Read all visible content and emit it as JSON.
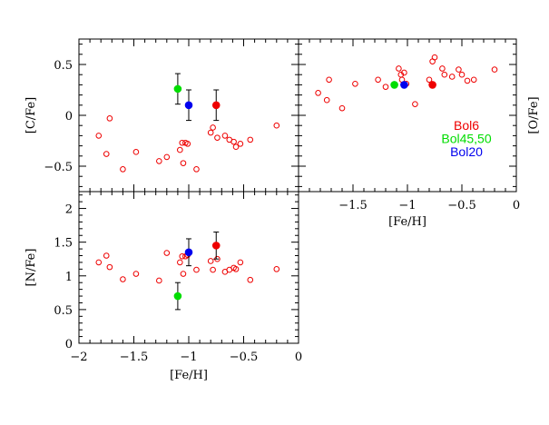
{
  "chart_data": [
    {
      "panel": "C",
      "type": "scatter",
      "xlabel": "",
      "ylabel": "[C/Fe]",
      "xlim": [
        -2,
        0
      ],
      "ylim": [
        -0.75,
        0.75
      ],
      "xticks": [
        -2,
        -1.5,
        -1,
        -0.5,
        0
      ],
      "yticks": [
        -0.5,
        0,
        0.5
      ],
      "ytick_labels": [
        "−0.5",
        "0",
        "0.5"
      ],
      "comparison": [
        [
          -1.82,
          -0.2
        ],
        [
          -1.75,
          -0.38
        ],
        [
          -1.72,
          -0.03
        ],
        [
          -1.6,
          -0.53
        ],
        [
          -1.48,
          -0.36
        ],
        [
          -1.27,
          -0.45
        ],
        [
          -1.2,
          -0.41
        ],
        [
          -1.08,
          -0.34
        ],
        [
          -1.06,
          -0.27
        ],
        [
          -1.05,
          -0.47
        ],
        [
          -1.03,
          -0.27
        ],
        [
          -1.01,
          -0.28
        ],
        [
          -0.93,
          -0.53
        ],
        [
          -0.8,
          -0.17
        ],
        [
          -0.78,
          -0.12
        ],
        [
          -0.74,
          -0.22
        ],
        [
          -0.67,
          -0.2
        ],
        [
          -0.63,
          -0.24
        ],
        [
          -0.59,
          -0.26
        ],
        [
          -0.57,
          -0.31
        ],
        [
          -0.53,
          -0.28
        ],
        [
          -0.44,
          -0.24
        ],
        [
          -0.2,
          -0.1
        ]
      ],
      "highlight": [
        {
          "x": -1.1,
          "y": 0.26,
          "err": 0.15,
          "color": "#00dd00"
        },
        {
          "x": -1.0,
          "y": 0.1,
          "err": 0.15,
          "color": "#0000ee"
        },
        {
          "x": -0.75,
          "y": 0.1,
          "err": 0.15,
          "color": "#ee0000"
        }
      ]
    },
    {
      "panel": "N",
      "type": "scatter",
      "xlabel": "[Fe/H]",
      "ylabel": "[N/Fe]",
      "xlim": [
        -2,
        0
      ],
      "ylim": [
        0,
        2.25
      ],
      "xticks": [
        -2,
        -1.5,
        -1,
        -0.5,
        0
      ],
      "xtick_labels": [
        "−2",
        "−1.5",
        "−1",
        "−0.5",
        "0"
      ],
      "yticks": [
        0,
        0.5,
        1,
        1.5,
        2
      ],
      "ytick_labels": [
        "0",
        "0.5",
        "1",
        "1.5",
        "2"
      ],
      "comparison": [
        [
          -1.82,
          1.2
        ],
        [
          -1.75,
          1.3
        ],
        [
          -1.72,
          1.13
        ],
        [
          -1.6,
          0.95
        ],
        [
          -1.48,
          1.03
        ],
        [
          -1.27,
          0.93
        ],
        [
          -1.2,
          1.34
        ],
        [
          -1.08,
          1.2
        ],
        [
          -1.06,
          1.29
        ],
        [
          -1.05,
          1.03
        ],
        [
          -1.03,
          1.29
        ],
        [
          -1.01,
          1.31
        ],
        [
          -0.93,
          1.09
        ],
        [
          -0.8,
          1.22
        ],
        [
          -0.78,
          1.09
        ],
        [
          -0.74,
          1.25
        ],
        [
          -0.67,
          1.06
        ],
        [
          -0.63,
          1.09
        ],
        [
          -0.59,
          1.12
        ],
        [
          -0.57,
          1.1
        ],
        [
          -0.53,
          1.2
        ],
        [
          -0.44,
          0.94
        ],
        [
          -0.2,
          1.1
        ]
      ],
      "highlight": [
        {
          "x": -1.1,
          "y": 0.7,
          "err": 0.2,
          "color": "#00dd00"
        },
        {
          "x": -1.0,
          "y": 1.35,
          "err": 0.2,
          "color": "#0000ee"
        },
        {
          "x": -0.75,
          "y": 1.45,
          "err": 0.2,
          "color": "#ee0000"
        }
      ]
    },
    {
      "panel": "O",
      "type": "scatter",
      "xlabel": "[Fe/H]",
      "ylabel": "[O/Fe]",
      "xlim": [
        -2,
        0
      ],
      "ylim": [
        -0.75,
        0.75
      ],
      "xticks": [
        -2,
        -1.5,
        -1,
        -0.5,
        0
      ],
      "xtick_labels": [
        "",
        "−1.5",
        "−1",
        "−0.5",
        "0"
      ],
      "yticks": [
        -0.5,
        0,
        0.5
      ],
      "comparison": [
        [
          -1.82,
          0.22
        ],
        [
          -1.74,
          0.15
        ],
        [
          -1.72,
          0.35
        ],
        [
          -1.6,
          0.07
        ],
        [
          -1.48,
          0.31
        ],
        [
          -1.27,
          0.35
        ],
        [
          -1.2,
          0.28
        ],
        [
          -1.08,
          0.46
        ],
        [
          -1.06,
          0.4
        ],
        [
          -1.05,
          0.35
        ],
        [
          -1.03,
          0.42
        ],
        [
          -1.01,
          0.31
        ],
        [
          -0.93,
          0.11
        ],
        [
          -0.8,
          0.35
        ],
        [
          -0.77,
          0.53
        ],
        [
          -0.75,
          0.57
        ],
        [
          -0.68,
          0.46
        ],
        [
          -0.66,
          0.4
        ],
        [
          -0.59,
          0.38
        ],
        [
          -0.53,
          0.45
        ],
        [
          -0.5,
          0.4
        ],
        [
          -0.45,
          0.34
        ],
        [
          -0.39,
          0.35
        ],
        [
          -0.2,
          0.45
        ]
      ],
      "highlight": [
        {
          "x": -1.12,
          "y": 0.3,
          "color": "#00dd00"
        },
        {
          "x": -1.03,
          "y": 0.3,
          "color": "#0000ee"
        },
        {
          "x": -0.77,
          "y": 0.3,
          "color": "#ee0000"
        }
      ]
    }
  ],
  "legend": [
    {
      "name": "Bol6",
      "color": "#ee0000"
    },
    {
      "name": "Bol45,50",
      "color": "#00dd00"
    },
    {
      "name": "Bol20",
      "color": "#0000ee"
    }
  ],
  "comparison_color": "#ee0000",
  "frame_color": "#000000"
}
